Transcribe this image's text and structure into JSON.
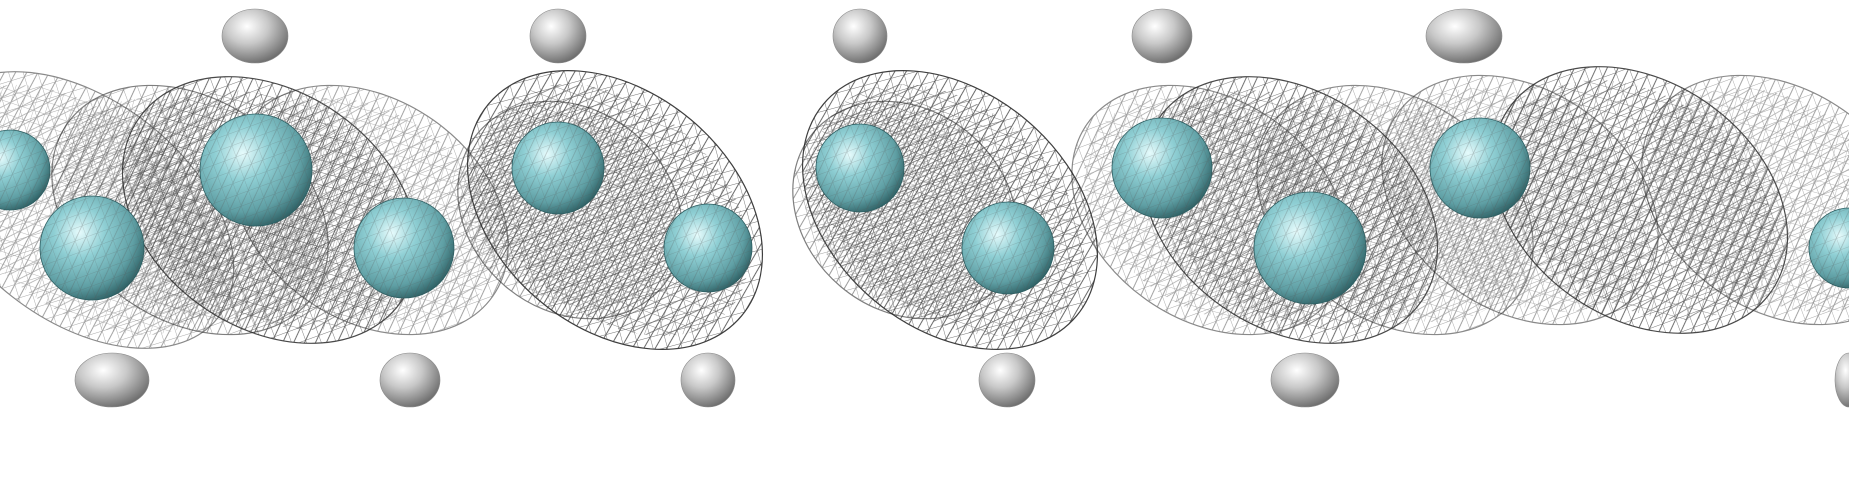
{
  "scene": {
    "background_color": "#ffffff",
    "atom_core_color": "#6fb7bd",
    "atom_highlight_color": "#e6fbfc",
    "atom_shadow_color": "#2c5e62",
    "hydrogen_color": "#c8c8c8",
    "hydrogen_highlight_color": "#ffffff",
    "hydrogen_shadow_color": "#6a6a6a",
    "wireframe_color": "#3a3a3a",
    "icons": [
      "wireframe-orbital-icon",
      "atom-sphere-icon",
      "hydrogen-atom-icon"
    ]
  }
}
